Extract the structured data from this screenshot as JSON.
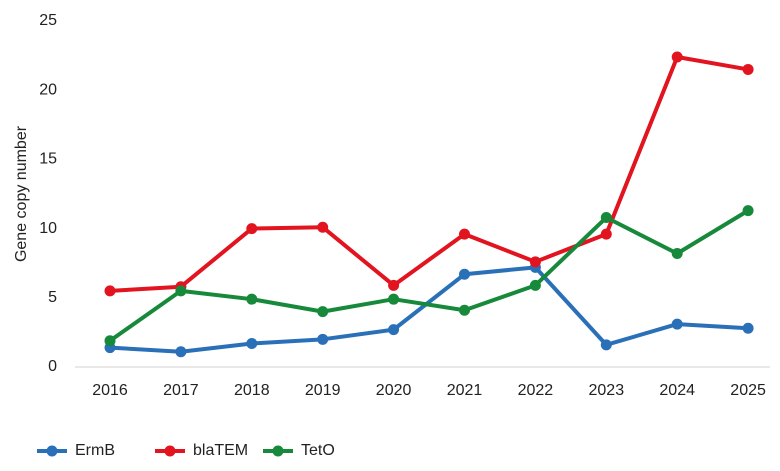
{
  "chart_data": {
    "type": "line",
    "y_label": "Gene copy number",
    "categories": [
      "2016",
      "2017",
      "2018",
      "2019",
      "2020",
      "2021",
      "2022",
      "2023",
      "2024",
      "2025"
    ],
    "series": [
      {
        "name": "ErmB",
        "color": "#2a70b8",
        "values": [
          1.4,
          1.1,
          1.7,
          2.0,
          2.7,
          6.7,
          7.2,
          1.6,
          3.1,
          2.8
        ]
      },
      {
        "name": "blaTEM",
        "color": "#e2141f",
        "values": [
          5.5,
          5.8,
          10.0,
          10.1,
          5.9,
          9.6,
          7.6,
          9.6,
          22.4,
          21.5
        ]
      },
      {
        "name": "TetO",
        "color": "#17893a",
        "values": [
          1.9,
          5.5,
          4.9,
          4.0,
          4.9,
          4.1,
          5.9,
          10.8,
          8.2,
          11.3
        ]
      }
    ],
    "ylim": [
      0,
      25
    ],
    "yticks": [
      0,
      5,
      10,
      15,
      20,
      25
    ],
    "grid": false,
    "legend": "bottom"
  }
}
